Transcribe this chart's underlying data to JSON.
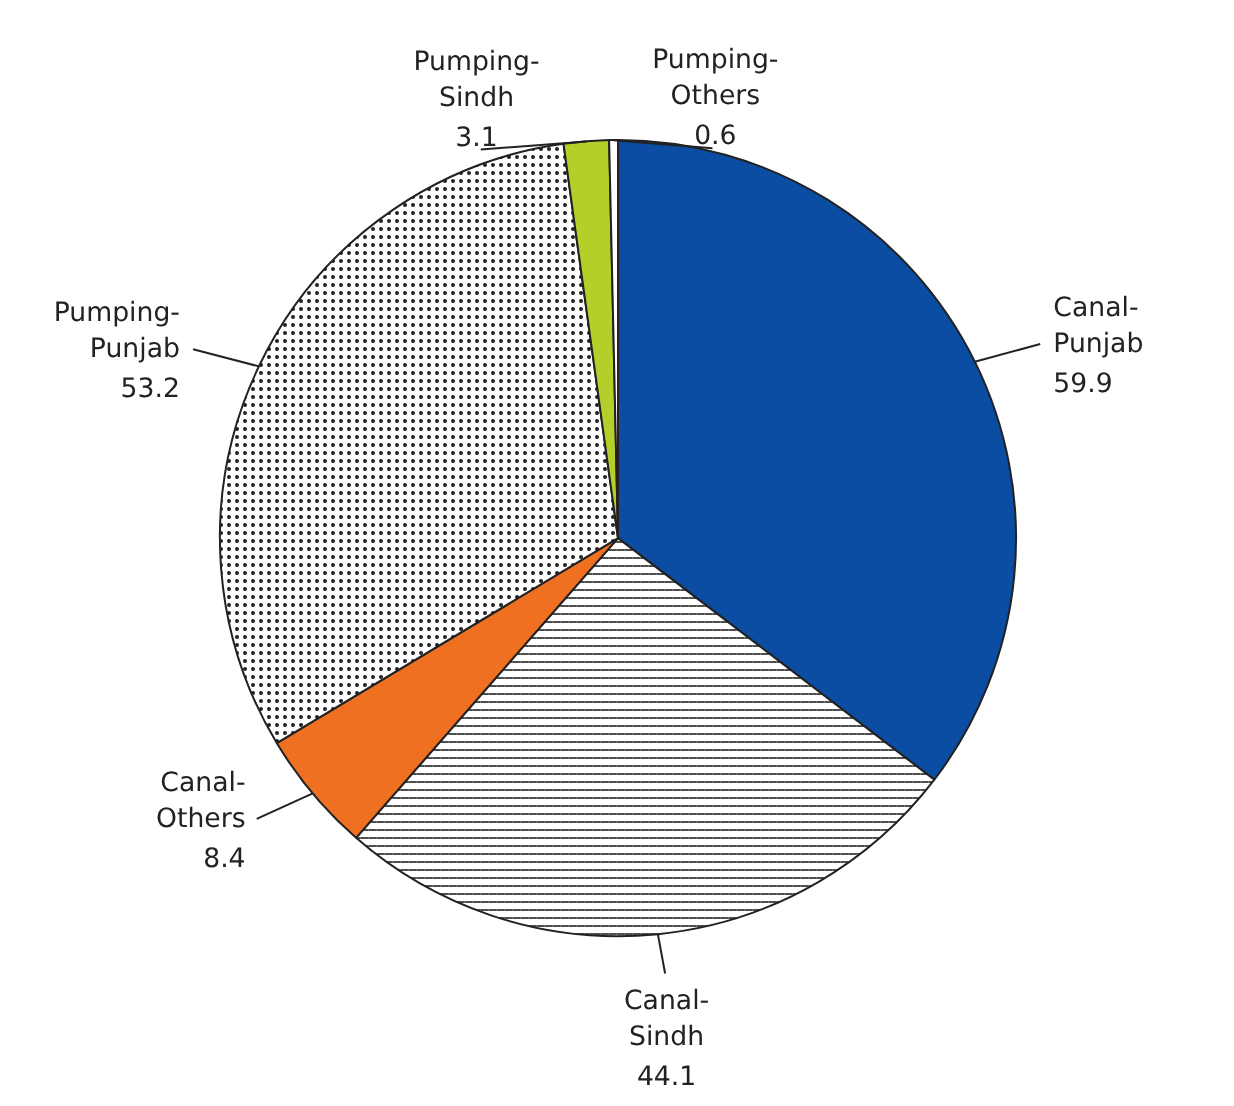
{
  "chart_data": {
    "type": "pie",
    "categories": [
      "Canal-Punjab",
      "Canal-Sindh",
      "Canal-Others",
      "Pumping-Punjab",
      "Pumping-Sindh",
      "Pumping-Others"
    ],
    "values": [
      59.9,
      44.1,
      8.4,
      53.2,
      3.1,
      0.6
    ],
    "colors": [
      "#0a4da2",
      "#ffffff",
      "#f07022",
      "#ffffff",
      "#b5cf2a",
      "#ffffff"
    ],
    "data_labels": true
  }
}
